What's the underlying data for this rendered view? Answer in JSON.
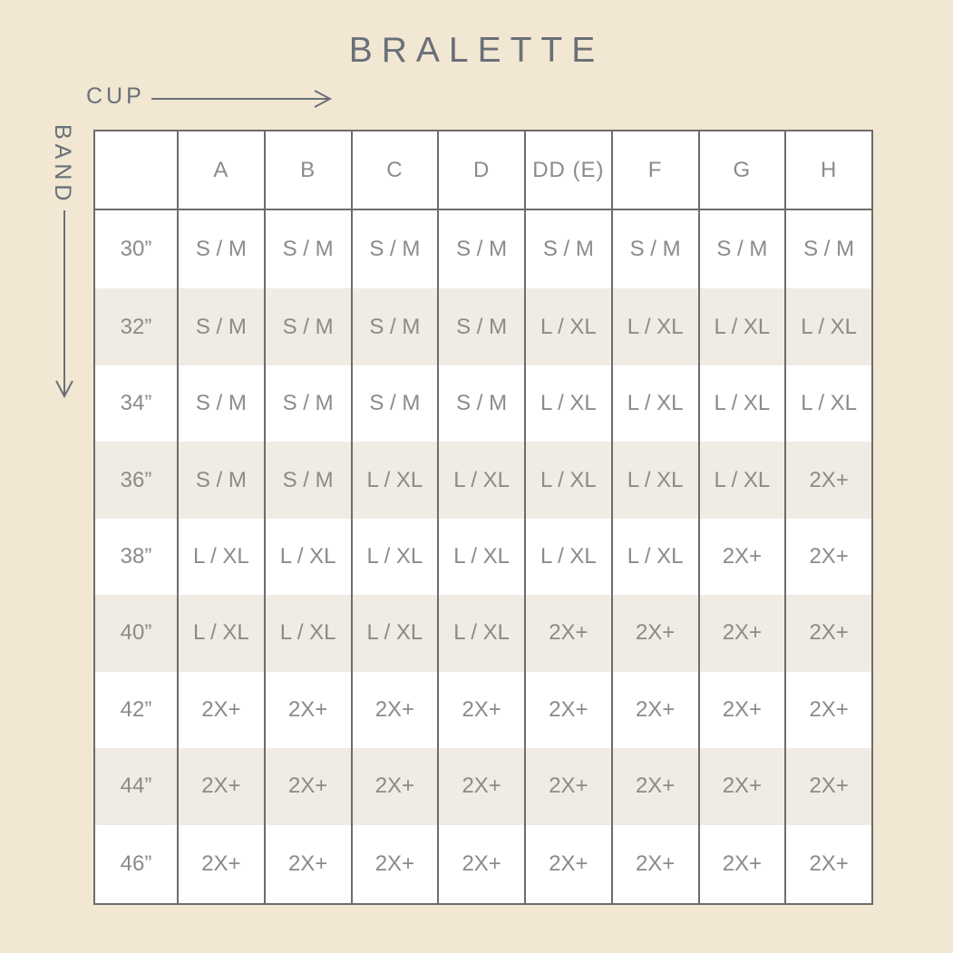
{
  "title": "BRALETTE",
  "axes": {
    "cup_label": "CUP",
    "band_label": "BAND"
  },
  "colors": {
    "page_background": "#f1e7d2",
    "row_stripe": "#f0ebe3",
    "cell_background": "#ffffff",
    "grid_border": "#6c6c6a",
    "cell_text": "#8b8b89",
    "heading_text": "#6a7078"
  },
  "chart_data": {
    "type": "table",
    "title": "BRALETTE",
    "x_axis_label": "CUP",
    "y_axis_label": "BAND",
    "columns": [
      "A",
      "B",
      "C",
      "D",
      "DD (E)",
      "F",
      "G",
      "H"
    ],
    "rows": [
      {
        "band": "30”",
        "sizes": [
          "S / M",
          "S / M",
          "S / M",
          "S / M",
          "S / M",
          "S / M",
          "S / M",
          "S / M"
        ]
      },
      {
        "band": "32”",
        "sizes": [
          "S / M",
          "S / M",
          "S / M",
          "S / M",
          "L / XL",
          "L / XL",
          "L / XL",
          "L / XL"
        ]
      },
      {
        "band": "34”",
        "sizes": [
          "S / M",
          "S / M",
          "S / M",
          "S / M",
          "L / XL",
          "L / XL",
          "L / XL",
          "L / XL"
        ]
      },
      {
        "band": "36”",
        "sizes": [
          "S / M",
          "S / M",
          "L / XL",
          "L / XL",
          "L / XL",
          "L / XL",
          "L / XL",
          "2X+"
        ]
      },
      {
        "band": "38”",
        "sizes": [
          "L / XL",
          "L / XL",
          "L / XL",
          "L / XL",
          "L / XL",
          "L / XL",
          "2X+",
          "2X+"
        ]
      },
      {
        "band": "40”",
        "sizes": [
          "L / XL",
          "L / XL",
          "L / XL",
          "L / XL",
          "2X+",
          "2X+",
          "2X+",
          "2X+"
        ]
      },
      {
        "band": "42”",
        "sizes": [
          "2X+",
          "2X+",
          "2X+",
          "2X+",
          "2X+",
          "2X+",
          "2X+",
          "2X+"
        ]
      },
      {
        "band": "44”",
        "sizes": [
          "2X+",
          "2X+",
          "2X+",
          "2X+",
          "2X+",
          "2X+",
          "2X+",
          "2X+"
        ]
      },
      {
        "band": "46”",
        "sizes": [
          "2X+",
          "2X+",
          "2X+",
          "2X+",
          "2X+",
          "2X+",
          "2X+",
          "2X+"
        ]
      }
    ]
  }
}
